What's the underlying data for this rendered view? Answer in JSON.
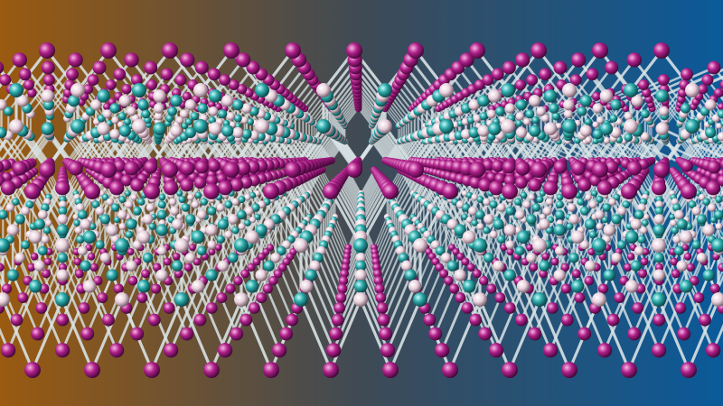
{
  "scene": {
    "subject": "layered-crystal-lattice",
    "layers": [
      "top-layer",
      "bottom-layer"
    ],
    "colors": {
      "background_left": "#9a5a10",
      "background_mid": "#3f4a55",
      "background_right": "#0a5a9a",
      "atom_magenta": "#b0208a",
      "atom_teal": "#2aa8a8",
      "atom_pink_white": "#e8d0dc",
      "bond": "#d8e2e4"
    }
  }
}
